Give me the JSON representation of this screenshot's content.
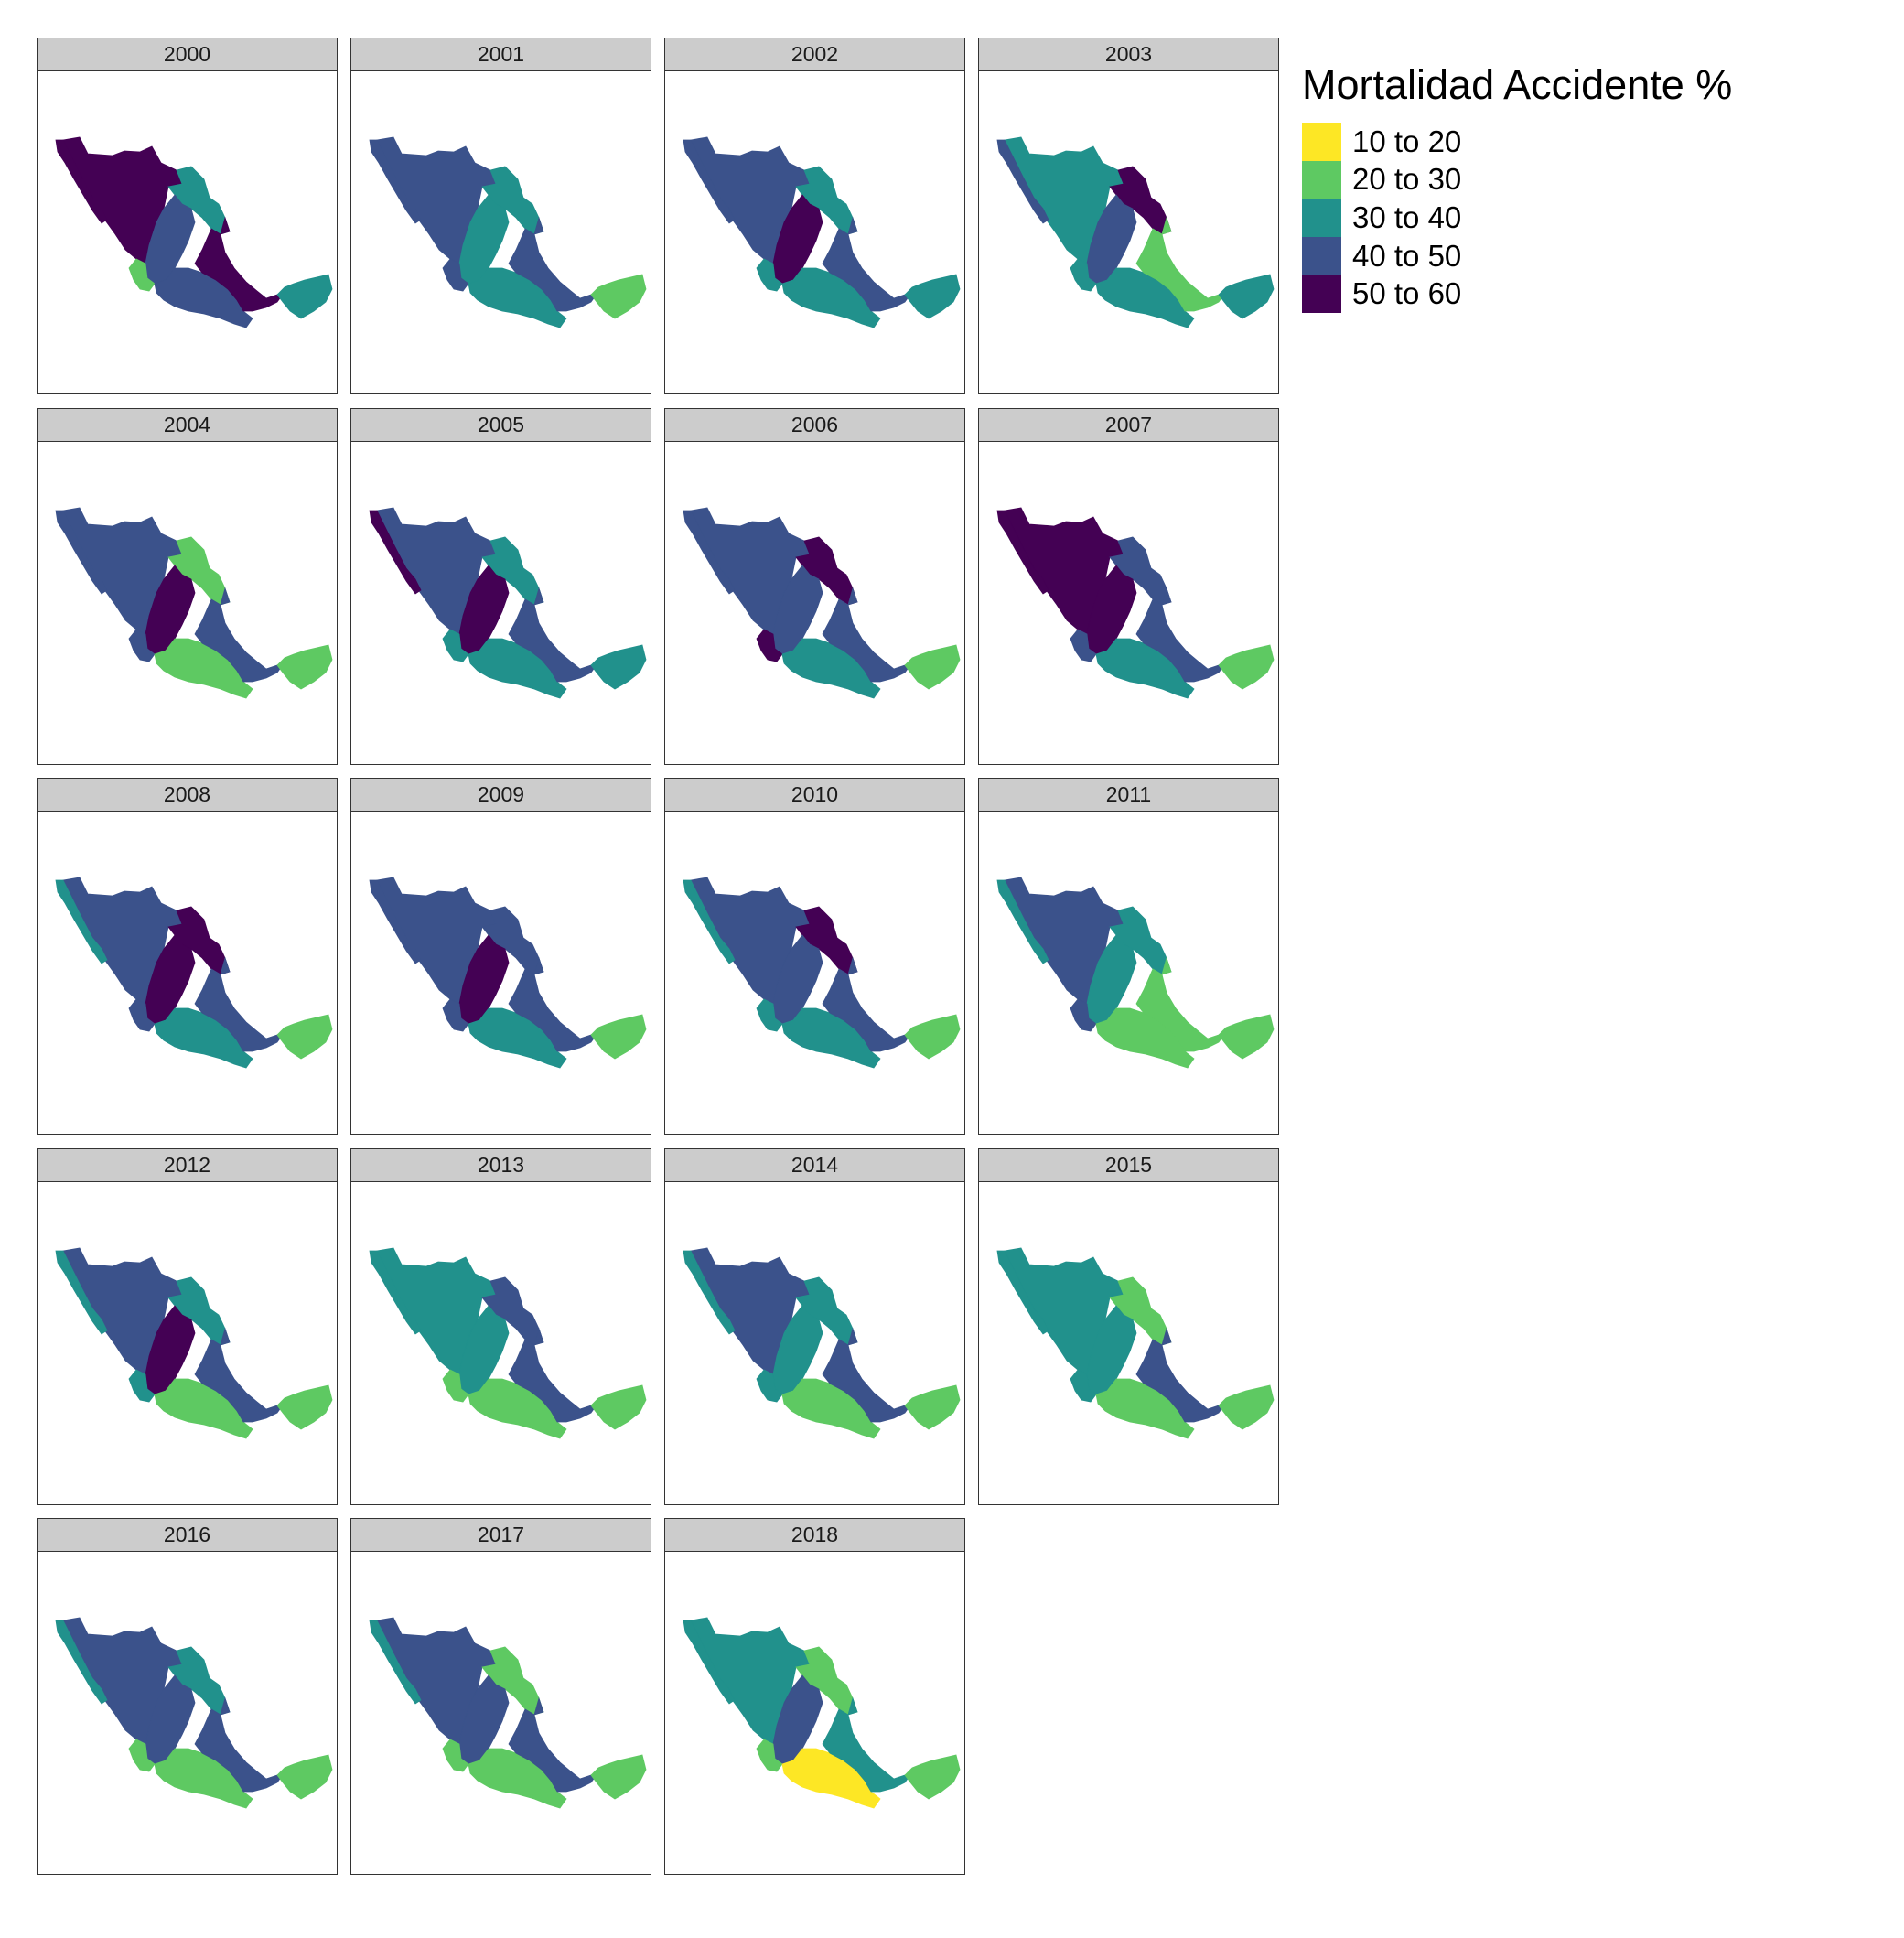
{
  "legend": {
    "title": "Mortalidad Accidente %",
    "items": [
      {
        "label": "10 to 20",
        "color": "#fde725"
      },
      {
        "label": "20 to 30",
        "color": "#5ec962"
      },
      {
        "label": "30 to 40",
        "color": "#21918c"
      },
      {
        "label": "40 to 50",
        "color": "#3b528b"
      },
      {
        "label": "50 to 60",
        "color": "#440154"
      }
    ]
  },
  "panels": [
    {
      "year": "2000",
      "classes": {
        "nw": 4,
        "bc": 4,
        "ne": 2,
        "center": 3,
        "south": 3,
        "yuc": 2,
        "west": 1,
        "tab": 4
      }
    },
    {
      "year": "2001",
      "classes": {
        "nw": 3,
        "bc": 3,
        "ne": 2,
        "center": 2,
        "south": 2,
        "yuc": 1,
        "west": 3,
        "tab": 3
      }
    },
    {
      "year": "2002",
      "classes": {
        "nw": 3,
        "bc": 3,
        "ne": 2,
        "center": 4,
        "south": 2,
        "yuc": 2,
        "west": 2,
        "tab": 3
      }
    },
    {
      "year": "2003",
      "classes": {
        "nw": 2,
        "bc": 3,
        "ne": 4,
        "center": 3,
        "south": 2,
        "yuc": 2,
        "west": 2,
        "tab": 1
      }
    },
    {
      "year": "2004",
      "classes": {
        "nw": 3,
        "bc": 3,
        "ne": 1,
        "center": 4,
        "south": 1,
        "yuc": 1,
        "west": 3,
        "tab": 3
      }
    },
    {
      "year": "2005",
      "classes": {
        "nw": 3,
        "bc": 4,
        "ne": 2,
        "center": 4,
        "south": 2,
        "yuc": 2,
        "west": 2,
        "tab": 3
      }
    },
    {
      "year": "2006",
      "classes": {
        "nw": 3,
        "bc": 3,
        "ne": 4,
        "center": 3,
        "south": 2,
        "yuc": 1,
        "west": 4,
        "tab": 3
      }
    },
    {
      "year": "2007",
      "classes": {
        "nw": 4,
        "bc": 4,
        "ne": 3,
        "center": 4,
        "south": 2,
        "yuc": 1,
        "west": 3,
        "tab": 3
      }
    },
    {
      "year": "2008",
      "classes": {
        "nw": 3,
        "bc": 2,
        "ne": 4,
        "center": 4,
        "south": 2,
        "yuc": 1,
        "west": 3,
        "tab": 3
      }
    },
    {
      "year": "2009",
      "classes": {
        "nw": 3,
        "bc": 3,
        "ne": 3,
        "center": 4,
        "south": 2,
        "yuc": 1,
        "west": 3,
        "tab": 3
      }
    },
    {
      "year": "2010",
      "classes": {
        "nw": 3,
        "bc": 2,
        "ne": 4,
        "center": 3,
        "south": 2,
        "yuc": 1,
        "west": 2,
        "tab": 3
      }
    },
    {
      "year": "2011",
      "classes": {
        "nw": 3,
        "bc": 2,
        "ne": 2,
        "center": 2,
        "south": 1,
        "yuc": 1,
        "west": 3,
        "tab": 1
      }
    },
    {
      "year": "2012",
      "classes": {
        "nw": 3,
        "bc": 2,
        "ne": 2,
        "center": 4,
        "south": 1,
        "yuc": 1,
        "west": 2,
        "tab": 3
      }
    },
    {
      "year": "2013",
      "classes": {
        "nw": 2,
        "bc": 2,
        "ne": 3,
        "center": 2,
        "south": 1,
        "yuc": 1,
        "west": 1,
        "tab": 3
      }
    },
    {
      "year": "2014",
      "classes": {
        "nw": 3,
        "bc": 2,
        "ne": 2,
        "center": 2,
        "south": 1,
        "yuc": 1,
        "west": 2,
        "tab": 3
      }
    },
    {
      "year": "2015",
      "classes": {
        "nw": 2,
        "bc": 2,
        "ne": 1,
        "center": 2,
        "south": 1,
        "yuc": 1,
        "west": 2,
        "tab": 3
      }
    },
    {
      "year": "2016",
      "classes": {
        "nw": 3,
        "bc": 2,
        "ne": 2,
        "center": 3,
        "south": 1,
        "yuc": 1,
        "west": 1,
        "tab": 3
      }
    },
    {
      "year": "2017",
      "classes": {
        "nw": 3,
        "bc": 2,
        "ne": 1,
        "center": 3,
        "south": 1,
        "yuc": 1,
        "west": 1,
        "tab": 3
      }
    },
    {
      "year": "2018",
      "classes": {
        "nw": 2,
        "bc": 2,
        "ne": 1,
        "center": 3,
        "south": 0,
        "yuc": 1,
        "west": 1,
        "tab": 2
      }
    }
  ]
}
